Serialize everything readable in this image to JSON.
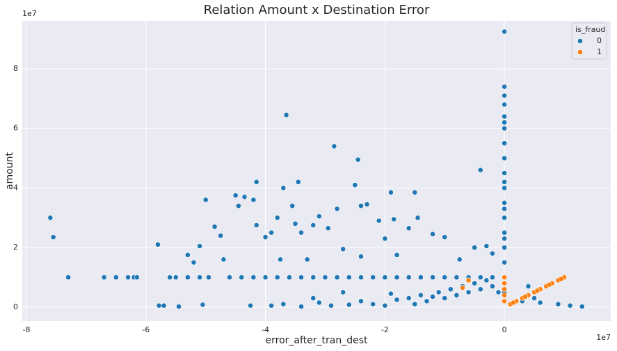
{
  "chart_data": {
    "type": "scatter",
    "title": "Relation Amount x Destination Error",
    "x_label": "error_after_tran_dest",
    "y_label": "amount",
    "x_offset_label": "1e7",
    "y_offset_label": "1e7",
    "xlim": [
      -8.07,
      1.78
    ],
    "ylim": [
      -0.47,
      9.61
    ],
    "xticks": [
      -8,
      -6,
      -4,
      -2,
      0
    ],
    "yticks": [
      0,
      2,
      4,
      6,
      8
    ],
    "grid": true,
    "legend_title": "is_fraud",
    "legend_loc": "upper right",
    "series": [
      {
        "name": "0",
        "color": "#1f77b4",
        "x": [
          -7.6,
          -7.55,
          -7.3,
          -6.7,
          -6.5,
          -6.3,
          -6.2,
          -6.15,
          -5.8,
          -5.78,
          -5.7,
          -5.45,
          -5.1,
          -5.05,
          -5.0,
          -5.3,
          -5.2,
          -4.85,
          -4.75,
          -4.7,
          -4.5,
          -4.45,
          -4.35,
          -4.2,
          -4.15,
          -4.15,
          -4.0,
          -3.9,
          -3.8,
          -3.7,
          -3.75,
          -3.65,
          -3.55,
          -3.5,
          -3.45,
          -3.4,
          -3.3,
          -3.2,
          -3.1,
          -2.95,
          -2.85,
          -2.8,
          -2.7,
          -2.5,
          -2.45,
          -2.4,
          -2.3,
          -2.4,
          -2.1,
          -2.0,
          -1.9,
          -1.85,
          -1.8,
          -1.6,
          -1.5,
          -1.45,
          -1.2,
          -1.0,
          -0.75,
          -0.5,
          -0.4,
          -0.3,
          -0.2,
          -4.6,
          -4.4,
          -4.2,
          -4.0,
          -3.8,
          -3.6,
          -3.4,
          -3.2,
          -3.0,
          -2.8,
          -2.6,
          -2.4,
          -2.2,
          -2.0,
          -1.8,
          -1.6,
          -1.4,
          -1.2,
          -1.0,
          -0.8,
          -0.6,
          -0.4,
          -0.2,
          -5.6,
          -5.5,
          -5.3,
          -5.1,
          -4.95,
          0,
          0,
          0,
          0,
          0,
          0,
          0,
          0,
          0,
          0,
          0,
          0,
          0,
          0,
          0,
          0,
          0,
          0,
          0,
          0,
          0,
          -3.9,
          -3.7,
          -3.4,
          -3.1,
          -2.9,
          -2.6,
          -2.4,
          -2.2,
          -2.0,
          -1.8,
          -1.6,
          -1.5,
          -1.4,
          -1.3,
          -1.2,
          -1.1,
          -1.0,
          -0.9,
          -0.8,
          -0.7,
          -0.6,
          -0.5,
          -0.4,
          -0.3,
          -0.2,
          -0.1,
          -4.25,
          -3.2,
          -2.7,
          -1.9,
          0.3,
          0.5,
          0.6,
          0.9,
          1.1,
          1.3,
          0.4
        ],
        "y": [
          3.0,
          2.35,
          1.0,
          1.0,
          1.0,
          1.0,
          1.0,
          1.0,
          2.1,
          0.05,
          0.05,
          0.02,
          2.05,
          0.08,
          3.6,
          1.75,
          1.5,
          2.7,
          2.4,
          1.6,
          3.75,
          3.4,
          3.7,
          3.6,
          4.2,
          2.75,
          2.35,
          2.5,
          3.0,
          4.0,
          1.6,
          6.45,
          3.4,
          2.8,
          4.2,
          2.5,
          1.6,
          2.75,
          3.05,
          2.65,
          5.4,
          3.3,
          1.95,
          4.1,
          4.95,
          3.4,
          3.45,
          1.7,
          2.9,
          2.3,
          3.85,
          2.95,
          1.75,
          2.65,
          3.85,
          3.0,
          2.45,
          2.35,
          1.6,
          2.0,
          4.6,
          2.05,
          1.8,
          1.0,
          1.0,
          1.0,
          1.0,
          1.0,
          1.0,
          1.0,
          1.0,
          1.0,
          1.0,
          1.0,
          1.0,
          1.0,
          1.0,
          1.0,
          1.0,
          1.0,
          1.0,
          1.0,
          1.0,
          1.0,
          1.0,
          1.0,
          1.0,
          1.0,
          1.0,
          1.0,
          1.0,
          0.5,
          1.0,
          1.5,
          2.0,
          2.5,
          3.0,
          3.5,
          4.0,
          4.5,
          5.0,
          5.5,
          6.0,
          6.2,
          6.4,
          6.8,
          7.1,
          7.4,
          9.25,
          2.3,
          3.3,
          4.2,
          0.05,
          0.1,
          0.02,
          0.15,
          0.05,
          0.08,
          0.2,
          0.1,
          0.05,
          0.25,
          0.3,
          0.1,
          0.4,
          0.2,
          0.35,
          0.5,
          0.3,
          0.6,
          0.4,
          0.7,
          0.5,
          0.8,
          0.6,
          0.9,
          0.7,
          0.5,
          0.05,
          0.3,
          0.5,
          0.45,
          0.2,
          0.3,
          0.15,
          0.1,
          0.05,
          0.02,
          0.7
        ]
      },
      {
        "name": "1",
        "color": "#ff7f0e",
        "x": [
          0,
          0,
          0,
          0,
          0,
          0.1,
          0.2,
          0.3,
          0.4,
          0.5,
          0.6,
          0.7,
          0.8,
          0.9,
          1.0,
          0.15,
          0.35,
          0.55,
          0.75,
          0.95,
          -0.7,
          -0.6
        ],
        "y": [
          0.2,
          0.4,
          0.6,
          0.8,
          1.0,
          0.1,
          0.2,
          0.3,
          0.4,
          0.5,
          0.6,
          0.7,
          0.8,
          0.9,
          1.0,
          0.15,
          0.35,
          0.55,
          0.75,
          0.95,
          0.65,
          0.9
        ]
      }
    ]
  }
}
